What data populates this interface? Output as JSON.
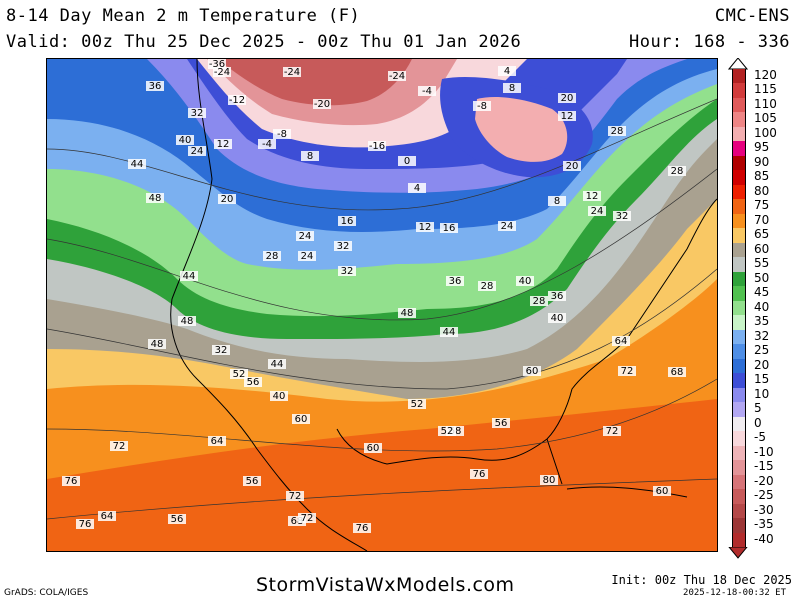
{
  "header": {
    "title": "8-14 Day Mean 2 m Temperature (F)",
    "model": "CMC-ENS",
    "valid": "Valid: 00z Thu 25 Dec 2025 - 00z Thu 01 Jan 2026",
    "hour": "Hour: 168 - 336"
  },
  "legend": {
    "labels": [
      "120",
      "115",
      "110",
      "105",
      "100",
      "95",
      "90",
      "85",
      "80",
      "75",
      "70",
      "65",
      "60",
      "55",
      "50",
      "45",
      "40",
      "35",
      "32",
      "25",
      "20",
      "15",
      "10",
      "5",
      "0",
      "-5",
      "-10",
      "-15",
      "-20",
      "-25",
      "-30",
      "-35",
      "-40"
    ],
    "colors": [
      "#b22222",
      "#d23c3c",
      "#e05a5a",
      "#ee8585",
      "#f3aeb0",
      "#e6007e",
      "#b00000",
      "#d00000",
      "#ee2000",
      "#f06414",
      "#f7901e",
      "#f9c864",
      "#a9a190",
      "#c0c6c3",
      "#2fa23a",
      "#51c150",
      "#92e08d",
      "#c8f4c8",
      "#7bb0f0",
      "#4e8ee6",
      "#2d6ed6",
      "#3d4ed6",
      "#8a8aee",
      "#b2a7f2",
      "#f0ecf0",
      "#f8d8dc",
      "#efb4b8",
      "#e39498",
      "#d77478",
      "#c75a5a",
      "#b44848",
      "#9c3636",
      "#b22c2c"
    ]
  },
  "map": {
    "contour_labels": [
      {
        "t": "-36"
      },
      {
        "t": "-24"
      },
      {
        "t": "-24"
      },
      {
        "t": "-20"
      },
      {
        "t": "-12"
      },
      {
        "t": "-8"
      },
      {
        "t": "-4"
      },
      {
        "t": "-16"
      },
      {
        "t": "-24"
      },
      {
        "t": "-4"
      },
      {
        "t": "4"
      },
      {
        "t": "8"
      },
      {
        "t": "-8"
      },
      {
        "t": "20"
      },
      {
        "t": "12"
      },
      {
        "t": "36"
      },
      {
        "t": "40"
      },
      {
        "t": "44"
      },
      {
        "t": "48"
      },
      {
        "t": "24"
      },
      {
        "t": "32"
      },
      {
        "t": "12"
      },
      {
        "t": "8"
      },
      {
        "t": "0"
      },
      {
        "t": "4"
      },
      {
        "t": "16"
      },
      {
        "t": "20"
      },
      {
        "t": "24"
      },
      {
        "t": "28"
      },
      {
        "t": "12"
      },
      {
        "t": "8"
      },
      {
        "t": "24"
      },
      {
        "t": "32"
      },
      {
        "t": "28"
      },
      {
        "t": "44"
      },
      {
        "t": "28"
      },
      {
        "t": "24"
      },
      {
        "t": "20"
      },
      {
        "t": "16"
      },
      {
        "t": "12"
      },
      {
        "t": "24"
      },
      {
        "t": "32"
      },
      {
        "t": "36"
      },
      {
        "t": "28"
      },
      {
        "t": "32"
      },
      {
        "t": "40"
      },
      {
        "t": "28"
      },
      {
        "t": "36"
      },
      {
        "t": "40"
      },
      {
        "t": "44"
      },
      {
        "t": "48"
      },
      {
        "t": "48"
      },
      {
        "t": "32"
      },
      {
        "t": "52"
      },
      {
        "t": "56"
      },
      {
        "t": "44"
      },
      {
        "t": "40"
      },
      {
        "t": "48"
      },
      {
        "t": "60"
      },
      {
        "t": "52"
      },
      {
        "t": "60"
      },
      {
        "t": "56"
      },
      {
        "t": "64"
      },
      {
        "t": "68"
      },
      {
        "t": "64"
      },
      {
        "t": "72"
      },
      {
        "t": "68"
      },
      {
        "t": "72"
      },
      {
        "t": "76"
      },
      {
        "t": "76"
      },
      {
        "t": "80"
      },
      {
        "t": "60"
      },
      {
        "t": "72"
      },
      {
        "t": "76"
      },
      {
        "t": "56"
      },
      {
        "t": "72"
      },
      {
        "t": "68"
      },
      {
        "t": "72"
      },
      {
        "t": "76"
      },
      {
        "t": "64"
      },
      {
        "t": "52"
      },
      {
        "t": "56"
      },
      {
        "t": "60"
      }
    ]
  },
  "footer": {
    "site": "StormVistaWxModels.com",
    "grads": "GrADS: COLA/IGES",
    "init": "Init: 00z Thu 18 Dec 2025",
    "stamp": "2025-12-18-00:32 ET"
  }
}
